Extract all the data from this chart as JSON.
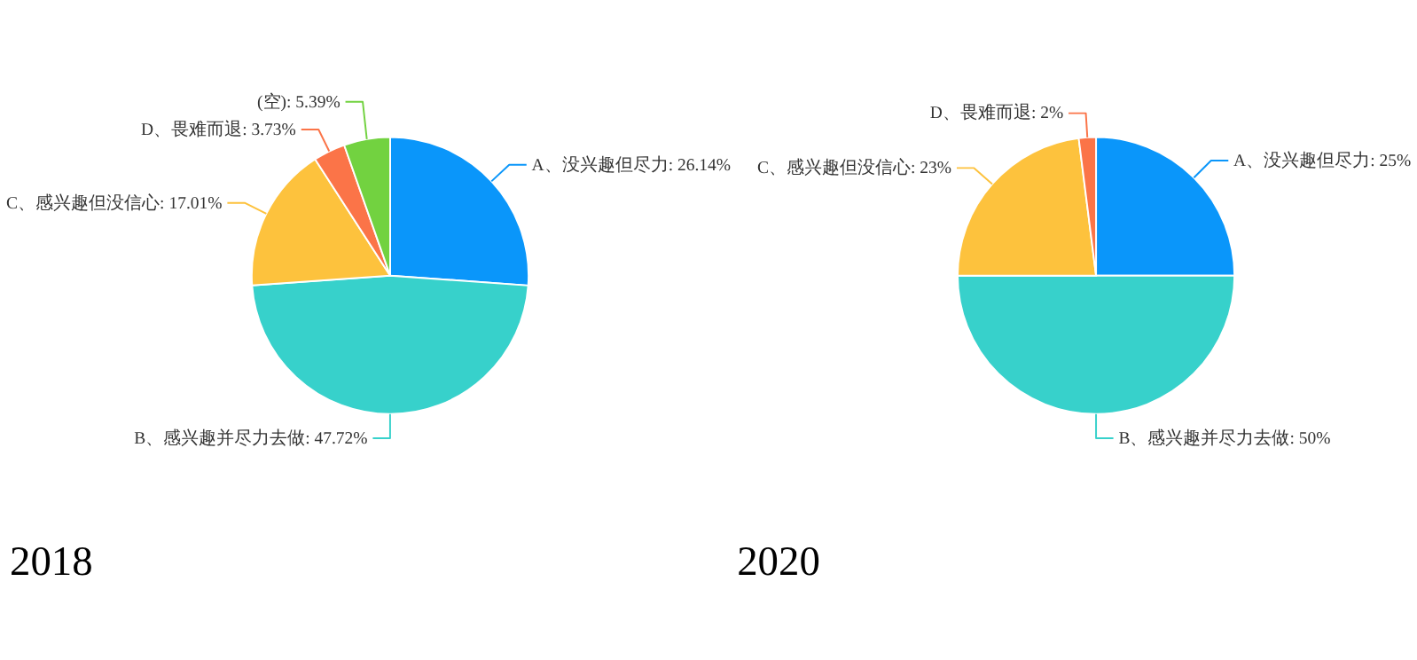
{
  "chart_data": [
    {
      "type": "pie",
      "title": "2018",
      "categories": [
        "A、没兴趣但尽力",
        "B、感兴趣并尽力去做",
        "C、感兴趣但没信心",
        "D、畏难而退",
        "(空)"
      ],
      "values": [
        26.14,
        47.72,
        17.01,
        3.73,
        5.39
      ],
      "value_labels": [
        "26.14%",
        "47.72%",
        "17.01%",
        "3.73%",
        "5.39%"
      ],
      "colors": [
        "#0a96fa",
        "#37d1cb",
        "#fdc23d",
        "#fb7448",
        "#72d240"
      ]
    },
    {
      "type": "pie",
      "title": "2020",
      "categories": [
        "A、没兴趣但尽力",
        "B、感兴趣并尽力去做",
        "C、感兴趣但没信心",
        "D、畏难而退"
      ],
      "values": [
        25,
        50,
        23,
        2
      ],
      "value_labels": [
        "25%",
        "50%",
        "23%",
        "2%"
      ],
      "colors": [
        "#0a96fa",
        "#37d1cb",
        "#fdc23d",
        "#fb7448"
      ]
    }
  ]
}
